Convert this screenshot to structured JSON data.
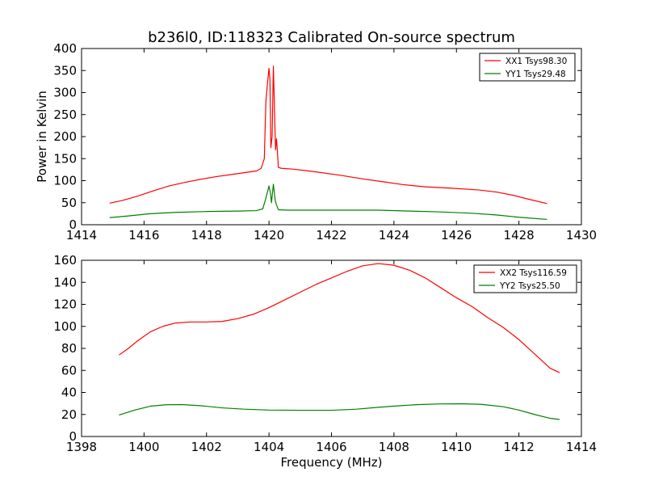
{
  "chart_data": [
    {
      "type": "line",
      "title": "b236l0, ID:118323 Calibrated On-source spectrum",
      "xlabel": "",
      "ylabel": "Power in Kelvin",
      "xlim": [
        1414,
        1430
      ],
      "ylim": [
        0,
        400
      ],
      "xticks": [
        1414,
        1416,
        1418,
        1420,
        1422,
        1424,
        1426,
        1428,
        1430
      ],
      "yticks": [
        0,
        50,
        100,
        150,
        200,
        250,
        300,
        350,
        400
      ],
      "grid": false,
      "legend_position": "top-right",
      "series": [
        {
          "name": "XX1 Tsys98.30",
          "color": "#ff0000",
          "points": [
            [
              1414.9,
              49
            ],
            [
              1415.3,
              55
            ],
            [
              1415.8,
              65
            ],
            [
              1416.3,
              77
            ],
            [
              1416.8,
              88
            ],
            [
              1417.3,
              96
            ],
            [
              1417.8,
              103
            ],
            [
              1418.3,
              109
            ],
            [
              1418.8,
              114
            ],
            [
              1419.3,
              119
            ],
            [
              1419.6,
              122
            ],
            [
              1419.75,
              128
            ],
            [
              1419.85,
              150
            ],
            [
              1419.9,
              280
            ],
            [
              1419.95,
              320
            ],
            [
              1420.0,
              355
            ],
            [
              1420.03,
              330
            ],
            [
              1420.06,
              175
            ],
            [
              1420.1,
              200
            ],
            [
              1420.14,
              360
            ],
            [
              1420.18,
              250
            ],
            [
              1420.21,
              170
            ],
            [
              1420.24,
              195
            ],
            [
              1420.27,
              165
            ],
            [
              1420.3,
              130
            ],
            [
              1420.4,
              128
            ],
            [
              1420.8,
              126
            ],
            [
              1421.5,
              120
            ],
            [
              1422.3,
              112
            ],
            [
              1423.0,
              104
            ],
            [
              1423.7,
              97
            ],
            [
              1424.3,
              91
            ],
            [
              1425.0,
              86
            ],
            [
              1425.8,
              83
            ],
            [
              1426.7,
              79
            ],
            [
              1427.3,
              74
            ],
            [
              1427.8,
              67
            ],
            [
              1428.3,
              58
            ],
            [
              1428.9,
              48
            ]
          ]
        },
        {
          "name": "YY1 Tsys29.48",
          "color": "#008000",
          "points": [
            [
              1414.9,
              16
            ],
            [
              1415.5,
              20
            ],
            [
              1416.2,
              25
            ],
            [
              1417.0,
              28
            ],
            [
              1418.0,
              30
            ],
            [
              1419.0,
              31
            ],
            [
              1419.6,
              32
            ],
            [
              1419.8,
              36
            ],
            [
              1419.9,
              60
            ],
            [
              1420.0,
              88
            ],
            [
              1420.05,
              70
            ],
            [
              1420.08,
              50
            ],
            [
              1420.14,
              92
            ],
            [
              1420.2,
              55
            ],
            [
              1420.24,
              45
            ],
            [
              1420.3,
              34
            ],
            [
              1420.6,
              33
            ],
            [
              1421.5,
              33
            ],
            [
              1422.5,
              33
            ],
            [
              1423.5,
              33
            ],
            [
              1424.5,
              31
            ],
            [
              1425.5,
              29
            ],
            [
              1426.5,
              26
            ],
            [
              1427.3,
              22
            ],
            [
              1428.0,
              17
            ],
            [
              1428.9,
              12
            ]
          ]
        }
      ]
    },
    {
      "type": "line",
      "title": "",
      "xlabel": "Frequency (MHz)",
      "ylabel": "",
      "xlim": [
        1398,
        1414
      ],
      "ylim": [
        0,
        160
      ],
      "xticks": [
        1398,
        1400,
        1402,
        1404,
        1406,
        1408,
        1410,
        1412,
        1414
      ],
      "yticks": [
        0,
        20,
        40,
        60,
        80,
        100,
        120,
        140,
        160
      ],
      "grid": false,
      "legend_position": "top-right",
      "series": [
        {
          "name": "XX2 Tsys116.59",
          "color": "#ff0000",
          "points": [
            [
              1399.2,
              74
            ],
            [
              1399.5,
              80
            ],
            [
              1399.8,
              87
            ],
            [
              1400.2,
              95
            ],
            [
              1400.6,
              100
            ],
            [
              1401.0,
              103
            ],
            [
              1401.5,
              104
            ],
            [
              1402.0,
              104
            ],
            [
              1402.5,
              104.5
            ],
            [
              1403.0,
              107
            ],
            [
              1403.5,
              111
            ],
            [
              1404.0,
              117
            ],
            [
              1404.5,
              124
            ],
            [
              1405.0,
              131
            ],
            [
              1405.5,
              138
            ],
            [
              1406.0,
              144
            ],
            [
              1406.5,
              150
            ],
            [
              1407.0,
              155
            ],
            [
              1407.5,
              157
            ],
            [
              1408.0,
              155.5
            ],
            [
              1408.5,
              151
            ],
            [
              1409.0,
              144
            ],
            [
              1409.5,
              135
            ],
            [
              1410.0,
              126
            ],
            [
              1410.5,
              118
            ],
            [
              1411.0,
              108
            ],
            [
              1411.5,
              99
            ],
            [
              1412.0,
              88
            ],
            [
              1412.5,
              75
            ],
            [
              1413.0,
              62
            ],
            [
              1413.3,
              58
            ]
          ]
        },
        {
          "name": "YY2 Tsys25.50",
          "color": "#008000",
          "points": [
            [
              1399.2,
              19.5
            ],
            [
              1399.7,
              24
            ],
            [
              1400.2,
              27.5
            ],
            [
              1400.7,
              28.8
            ],
            [
              1401.2,
              29
            ],
            [
              1401.8,
              28
            ],
            [
              1402.5,
              26
            ],
            [
              1403.2,
              24.8
            ],
            [
              1404.0,
              24
            ],
            [
              1405.0,
              23.8
            ],
            [
              1406.0,
              23.8
            ],
            [
              1406.8,
              24.8
            ],
            [
              1407.5,
              26.5
            ],
            [
              1408.2,
              28
            ],
            [
              1408.8,
              29
            ],
            [
              1409.5,
              29.6
            ],
            [
              1410.2,
              29.7
            ],
            [
              1410.8,
              29.2
            ],
            [
              1411.5,
              27
            ],
            [
              1412.0,
              24
            ],
            [
              1412.5,
              20
            ],
            [
              1413.0,
              16.5
            ],
            [
              1413.3,
              15.5
            ]
          ]
        }
      ]
    }
  ]
}
